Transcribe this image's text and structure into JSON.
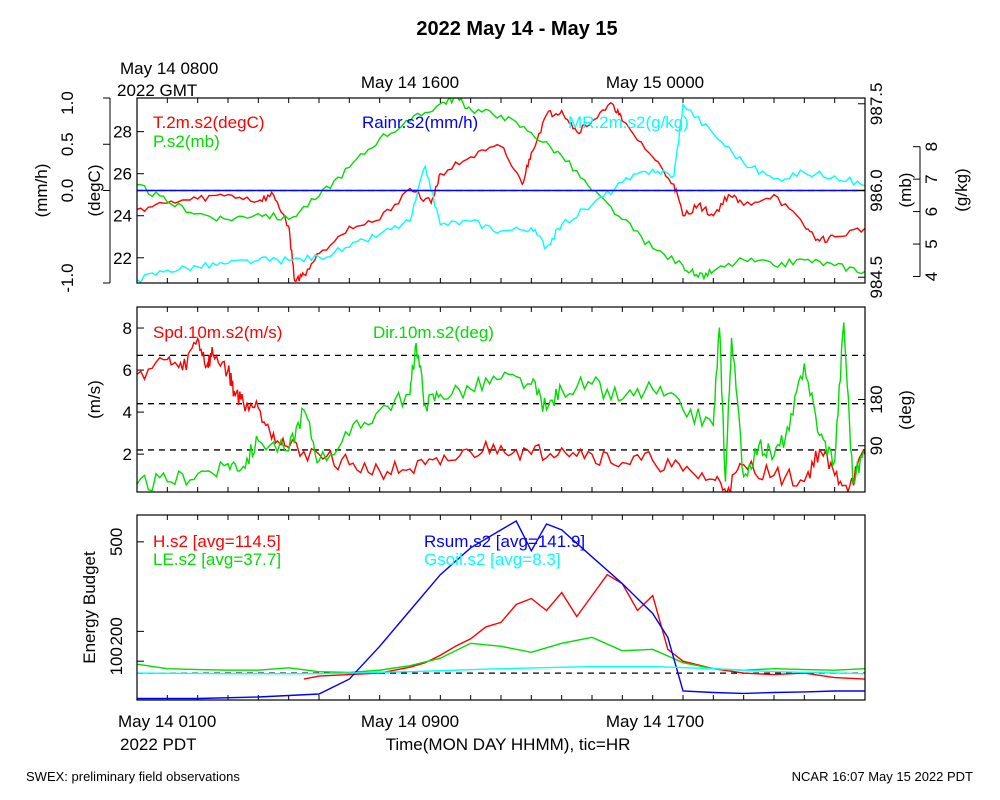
{
  "title": "2022 May 14 - May 15",
  "top_time_label": {
    "line1": "May 14 0800",
    "line2": "2022 GMT"
  },
  "top_ticks": [
    "May 14 1600",
    "May 15 0000"
  ],
  "bottom_time_label": {
    "line1": "May 14 0100",
    "line2": "2022 PDT"
  },
  "bottom_ticks": [
    "May 14 0900",
    "May 14 1700"
  ],
  "xlabel": "Time(MON DAY HHMM), tic=HR",
  "footer_left": "SWEX: preliminary field observations",
  "footer_right": "NCAR 16:07 May 15 2022 PDT",
  "colors": {
    "red": "#ff0000",
    "green": "#00dd00",
    "blue": "#0000ff",
    "cyan": "#00ffff",
    "black": "#000000"
  },
  "chart_data": [
    {
      "type": "line",
      "id": "panel1",
      "x_range_hours": [
        0,
        24
      ],
      "axes": {
        "outer_left": {
          "label": "(mm/h)",
          "range": [
            -1.0,
            1.0
          ],
          "ticks": [
            "-1.0",
            "0.0",
            "0.5",
            "1.0"
          ]
        },
        "inner_left": {
          "label": "(degC)",
          "range": [
            20.8,
            29.6
          ],
          "ticks": [
            "22",
            "24",
            "26",
            "28"
          ]
        },
        "inner_right": {
          "label": "(mb)",
          "range": [
            984.4,
            987.6
          ],
          "ticks": [
            "984.5",
            "986.0",
            "987.5"
          ]
        },
        "outer_right": {
          "label": "(g/kg)",
          "range": [
            3.8,
            9.5
          ],
          "ticks": [
            "4",
            "5",
            "6",
            "7",
            "8"
          ]
        }
      },
      "reference_line": {
        "axis": "outer_left",
        "value": 0.0
      },
      "series": [
        {
          "name": "T.2m.s2(degC)",
          "color": "#ff0000",
          "axis": "inner_left",
          "x": [
            0,
            1,
            2,
            3,
            4,
            4.5,
            5,
            5.2,
            5.5,
            6,
            7,
            8,
            9,
            9.7,
            10,
            11,
            12,
            12.7,
            13,
            13.5,
            14,
            14.5,
            15,
            15.7,
            16,
            17,
            17.7,
            18,
            18.5,
            19,
            19.5,
            20,
            21,
            22,
            22.5,
            23,
            24
          ],
          "values": [
            24.3,
            24.6,
            24.8,
            25.0,
            24.7,
            25.0,
            23.5,
            20.9,
            21.2,
            22.2,
            23.5,
            23.8,
            25.3,
            24.6,
            26.0,
            26.8,
            27.3,
            25.5,
            27.0,
            28.8,
            29.0,
            28.0,
            28.5,
            29.3,
            28.5,
            26.8,
            25.5,
            24.0,
            24.5,
            24.0,
            25.0,
            24.5,
            25.0,
            23.5,
            22.8,
            23.0,
            23.4
          ]
        },
        {
          "name": "P.s2(mb)",
          "color": "#00dd00",
          "axis": "inner_right",
          "x": [
            0,
            1,
            2,
            3,
            4,
            5,
            6,
            7,
            8,
            9,
            10,
            10.5,
            11,
            12,
            13,
            14,
            15,
            16,
            17,
            18,
            18.5,
            19,
            20,
            21,
            22,
            23,
            24
          ],
          "values": [
            986.1,
            985.8,
            985.6,
            985.5,
            985.6,
            985.5,
            985.9,
            986.4,
            986.9,
            987.2,
            987.5,
            987.6,
            987.4,
            987.3,
            987.0,
            986.6,
            986.0,
            985.5,
            985.0,
            984.7,
            984.5,
            984.6,
            984.8,
            984.7,
            984.8,
            984.7,
            984.6
          ]
        },
        {
          "name": "MR.2m.s2(g/kg)",
          "color": "#00ffff",
          "axis": "outer_right",
          "x": [
            0,
            1,
            2,
            3,
            4,
            5,
            6,
            7,
            8,
            9,
            9.5,
            10,
            11,
            12,
            13,
            13.5,
            14,
            15,
            16,
            17,
            17.7,
            18,
            19,
            20,
            21,
            22,
            23,
            24
          ],
          "values": [
            3.9,
            4.2,
            4.3,
            4.4,
            4.5,
            4.5,
            4.6,
            4.9,
            5.3,
            5.7,
            7.4,
            5.6,
            5.7,
            5.4,
            5.5,
            4.9,
            5.6,
            6.2,
            6.9,
            7.3,
            7.1,
            9.3,
            8.4,
            7.5,
            7.0,
            7.2,
            7.1,
            6.8
          ]
        },
        {
          "name": "Rainr.s2(mm/h)",
          "color": "#0000ff",
          "axis": "outer_left",
          "x": [
            0,
            24
          ],
          "values": [
            0.0,
            0.0
          ]
        }
      ]
    },
    {
      "type": "line",
      "id": "panel2",
      "x_range_hours": [
        0,
        24
      ],
      "axes": {
        "left": {
          "label": "(m/s)",
          "range": [
            0.2,
            9.0
          ],
          "ticks": [
            "2",
            "4",
            "6",
            "8"
          ]
        },
        "right": {
          "label": "(deg)",
          "range": [
            0,
            360
          ],
          "ticks": [
            "90",
            "180"
          ]
        }
      },
      "reference_lines": [
        {
          "axis": "left",
          "value": 2.2
        },
        {
          "axis": "left",
          "value": 4.4
        },
        {
          "axis": "left",
          "value": 6.7
        }
      ],
      "series": [
        {
          "name": "Spd.10m.s2(m/s)",
          "color": "#ff0000",
          "axis": "left",
          "x": [
            0,
            1,
            1.5,
            2,
            2.3,
            2.5,
            3,
            3.2,
            3.5,
            4,
            4.5,
            5,
            6,
            7,
            8,
            9,
            10,
            11,
            12,
            13,
            14,
            15,
            16,
            17,
            18,
            19,
            19.5,
            20,
            21,
            22,
            22.5,
            23,
            23.5,
            24
          ],
          "values": [
            5.8,
            6.5,
            6.0,
            7.5,
            6.2,
            6.8,
            6.0,
            5.0,
            4.5,
            4.2,
            3.0,
            2.3,
            2.0,
            1.5,
            1.2,
            1.3,
            1.5,
            2.1,
            2.4,
            2.0,
            2.3,
            2.0,
            1.6,
            1.7,
            1.2,
            0.8,
            0.4,
            1.5,
            1.0,
            0.7,
            2.2,
            1.0,
            0.5,
            2.0
          ]
        },
        {
          "name": "Dir.10m.s2(deg)",
          "color": "#00dd00",
          "axis": "right",
          "x": [
            0,
            1,
            2,
            3,
            3.5,
            4,
            5,
            5.5,
            6,
            7,
            8,
            9,
            9.2,
            9.5,
            10,
            11,
            12,
            13,
            13.5,
            14,
            15,
            16,
            17,
            18,
            19,
            19.2,
            19.4,
            19.6,
            20,
            20.5,
            21,
            21.5,
            22,
            22.5,
            23,
            23.3,
            23.6,
            24
          ],
          "values": [
            15,
            20,
            35,
            55,
            50,
            100,
            80,
            160,
            60,
            110,
            160,
            190,
            290,
            170,
            190,
            200,
            220,
            210,
            160,
            200,
            210,
            180,
            200,
            160,
            130,
            320,
            20,
            300,
            30,
            90,
            70,
            120,
            250,
            110,
            60,
            330,
            20,
            80
          ]
        }
      ]
    },
    {
      "type": "line",
      "id": "panel3",
      "x_range_hours": [
        0,
        24
      ],
      "axes": {
        "left": {
          "label": "Energy Budget",
          "range": [
            -30,
            590
          ],
          "ticks": [
            "100",
            "200",
            "500"
          ]
        }
      },
      "reference_line": {
        "axis": "left",
        "value": 60
      },
      "series": [
        {
          "name": "H.s2 [avg=114.5]",
          "color": "#ff0000",
          "axis": "left",
          "x": [
            5.5,
            6,
            7,
            8,
            9,
            9.5,
            10,
            10.5,
            11,
            11.5,
            12,
            12.5,
            13,
            13.5,
            14,
            14.5,
            15,
            15.5,
            16,
            16.5,
            17,
            17.5,
            18,
            19,
            20,
            21,
            22,
            23,
            24
          ],
          "values": [
            40,
            50,
            55,
            60,
            80,
            95,
            120,
            150,
            175,
            215,
            230,
            290,
            310,
            270,
            330,
            250,
            320,
            390,
            360,
            270,
            320,
            140,
            100,
            75,
            60,
            55,
            60,
            45,
            40
          ]
        },
        {
          "name": "LE.s2 [avg=37.7]",
          "color": "#00dd00",
          "axis": "left",
          "x": [
            0,
            1,
            2,
            3,
            4,
            5,
            6,
            7,
            8,
            9,
            10,
            11,
            12,
            13,
            14,
            15,
            16,
            17,
            18,
            19,
            20,
            21,
            22,
            23,
            24
          ],
          "values": [
            90,
            75,
            72,
            70,
            70,
            78,
            65,
            62,
            70,
            85,
            110,
            160,
            150,
            130,
            160,
            180,
            135,
            140,
            95,
            75,
            70,
            75,
            72,
            70,
            75
          ]
        },
        {
          "name": "Rsum.s2 [avg=141.9]",
          "color": "#0000ff",
          "axis": "left",
          "x": [
            0,
            2,
            4,
            6,
            7,
            8,
            9,
            10,
            11,
            12,
            12.5,
            13,
            13.5,
            14,
            15,
            16,
            17,
            17.5,
            18,
            19,
            20,
            21,
            22,
            23,
            24
          ],
          "values": [
            -25,
            -25,
            -20,
            -10,
            40,
            150,
            270,
            390,
            480,
            540,
            570,
            470,
            560,
            540,
            450,
            360,
            260,
            180,
            0,
            -5,
            -8,
            -5,
            -3,
            0,
            0
          ]
        },
        {
          "name": "Gsoil.s2 [avg=8.3]",
          "color": "#00ffff",
          "axis": "left",
          "x": [
            0,
            3,
            6,
            9,
            12,
            15,
            17,
            19,
            21,
            24
          ],
          "values": [
            60,
            58,
            58,
            65,
            75,
            82,
            82,
            75,
            65,
            58
          ]
        }
      ]
    }
  ]
}
